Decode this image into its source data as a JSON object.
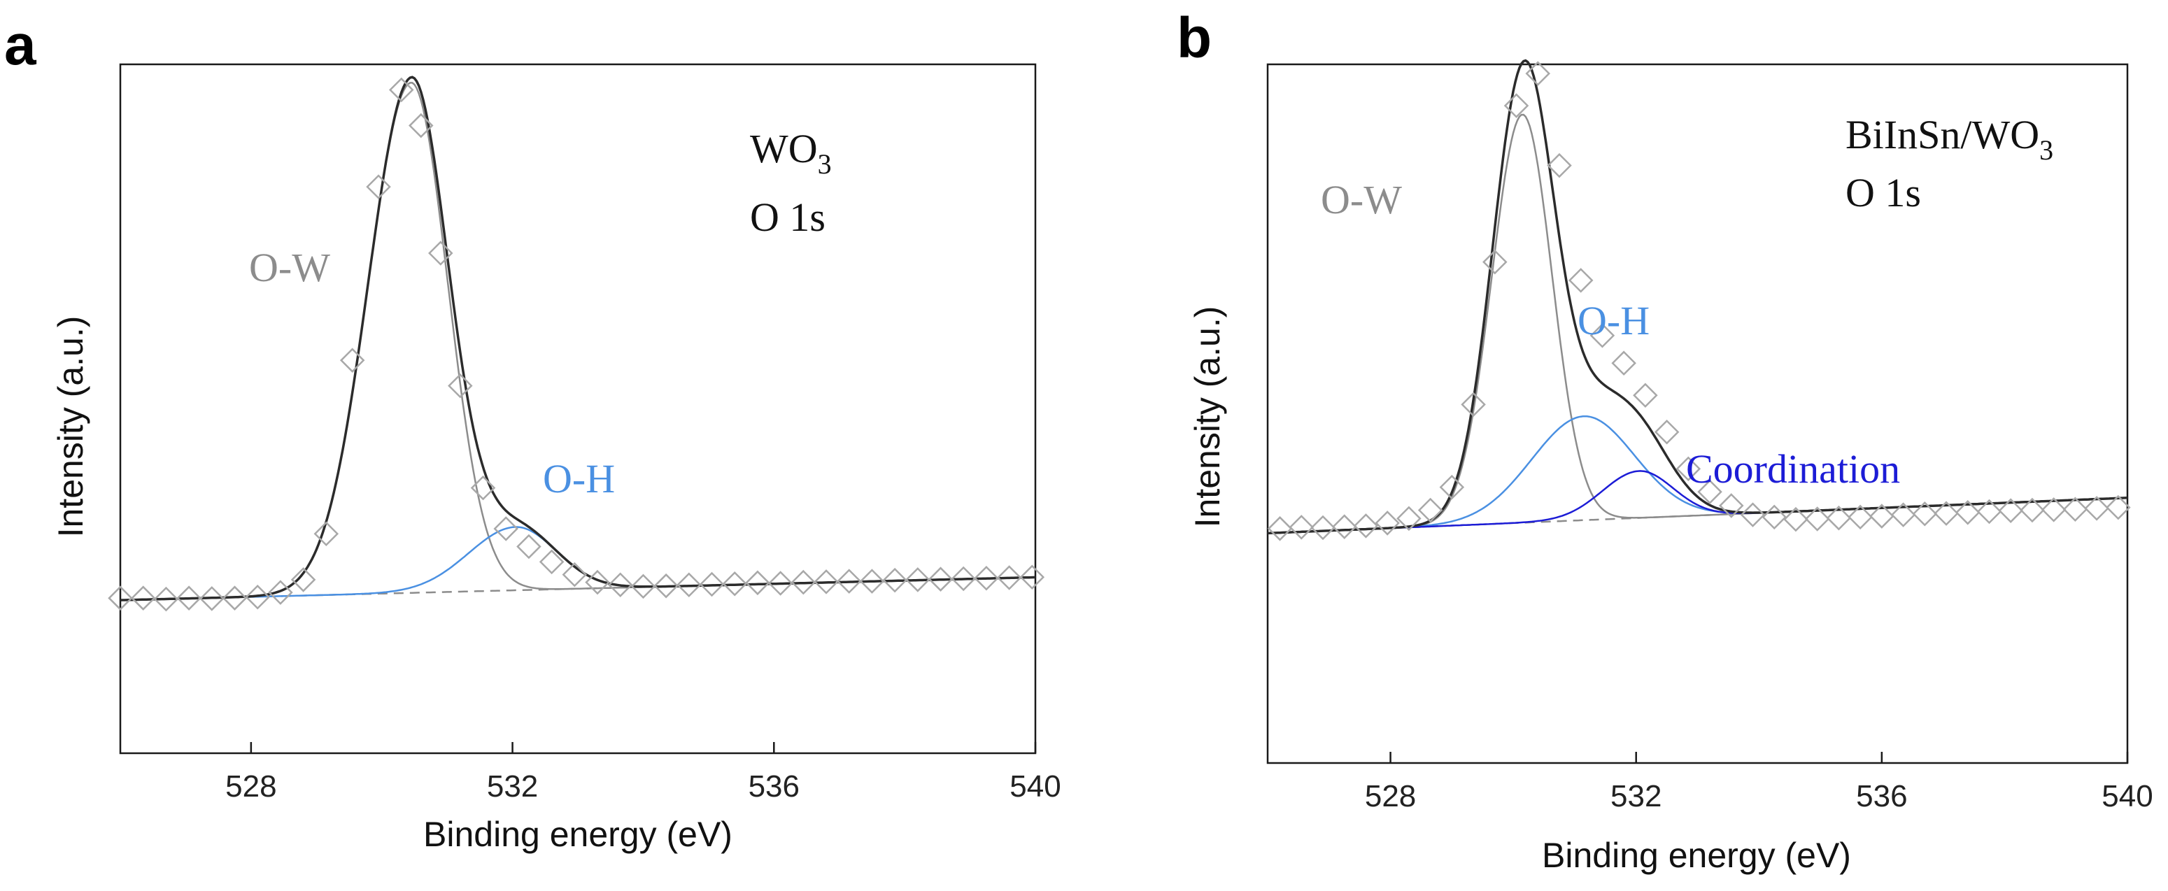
{
  "chart_data": [
    {
      "type": "line",
      "panel_label": "a",
      "title": "",
      "xlabel": "Binding energy (eV)",
      "ylabel": "Intensity (a.u.)",
      "xlim": [
        526,
        540
      ],
      "ylim": [
        -0.3,
        1.05
      ],
      "x_ticks": [
        528,
        532,
        536,
        540
      ],
      "x_tick_labels": [
        "528",
        "532",
        "536",
        "540"
      ],
      "grid": false,
      "legend": "none",
      "background": {
        "y0": 0.0,
        "slope": 0.0032
      },
      "components": [
        {
          "name": "O-W",
          "center": 530.45,
          "height": 1.0,
          "sigma_left": 0.66,
          "sigma_right": 0.56,
          "color": "#8c8c8c"
        },
        {
          "name": "O-H",
          "center": 532.05,
          "height": 0.124,
          "sigma_left": 0.72,
          "sigma_right": 0.62,
          "color": "#4a90e2"
        }
      ],
      "series": [
        {
          "name": "Raw data",
          "marker": "diamond",
          "color": "#a8a8a8",
          "x": [
            526.0,
            526.35,
            526.7,
            527.05,
            527.4,
            527.75,
            528.1,
            528.45,
            528.8,
            529.15,
            529.55,
            529.95,
            530.3,
            530.6,
            530.9,
            531.2,
            531.55,
            531.9,
            532.25,
            532.6,
            532.95,
            533.3,
            533.65,
            534.0,
            534.35,
            534.7,
            535.05,
            535.4,
            535.75,
            536.1,
            536.45,
            536.8,
            537.15,
            537.5,
            537.85,
            538.2,
            538.55,
            538.9,
            539.25,
            539.6,
            539.95
          ],
          "y": [
            0.004,
            0.004,
            0.002,
            0.004,
            0.003,
            0.004,
            0.006,
            0.015,
            0.04,
            0.13,
            0.47,
            0.81,
            1.0,
            0.93,
            0.68,
            0.42,
            0.22,
            0.14,
            0.105,
            0.075,
            0.05,
            0.035,
            0.03,
            0.027,
            0.028,
            0.03,
            0.031,
            0.032,
            0.034,
            0.033,
            0.035,
            0.036,
            0.037,
            0.037,
            0.039,
            0.04,
            0.041,
            0.042,
            0.043,
            0.044,
            0.045
          ]
        },
        {
          "name": "Envelope",
          "color": "#2b2b2b",
          "derived": "O-W + O-H + background"
        },
        {
          "name": "Background",
          "color": "#8c8c8c",
          "dash": true
        }
      ],
      "annotations": {
        "sample": "WO",
        "sample_sub": "3",
        "orbital": "O 1s",
        "peak1": "O-W",
        "peak2": "O-H"
      }
    },
    {
      "type": "line",
      "panel_label": "b",
      "title": "",
      "xlabel": "Binding energy (eV)",
      "ylabel": "Intensity (a.u.)",
      "xlim": [
        526,
        540
      ],
      "ylim": [
        -0.5,
        1.02
      ],
      "x_ticks": [
        528,
        532,
        536,
        540
      ],
      "x_tick_labels": [
        "528",
        "532",
        "536",
        "540"
      ],
      "grid": false,
      "legend": "none",
      "background": {
        "y0": 0.0,
        "slope": 0.0055
      },
      "components": [
        {
          "name": "O-W",
          "center": 530.15,
          "height": 0.888,
          "sigma_left": 0.5,
          "sigma_right": 0.48,
          "color": "#8c8c8c"
        },
        {
          "name": "O-H",
          "center": 531.15,
          "height": 0.226,
          "sigma_left": 0.85,
          "sigma_right": 0.82,
          "color": "#4a90e2"
        },
        {
          "name": "Coordination",
          "center": 532.05,
          "height": 0.102,
          "sigma_left": 0.6,
          "sigma_right": 0.55,
          "color": "#1c1cd6"
        }
      ],
      "series": [
        {
          "name": "Raw data",
          "marker": "diamond",
          "color": "#a8a8a8",
          "x": [
            526.2,
            526.55,
            526.9,
            527.25,
            527.6,
            527.95,
            528.3,
            528.65,
            529.0,
            529.35,
            529.7,
            530.05,
            530.4,
            530.75,
            531.1,
            531.45,
            531.8,
            532.15,
            532.5,
            532.85,
            533.2,
            533.55,
            533.9,
            534.25,
            534.6,
            534.95,
            535.3,
            535.65,
            536.0,
            536.35,
            536.7,
            537.05,
            537.4,
            537.75,
            538.1,
            538.45,
            538.8,
            539.15,
            539.5,
            539.85
          ],
          "y": [
            0.01,
            0.013,
            0.012,
            0.014,
            0.016,
            0.022,
            0.032,
            0.05,
            0.1,
            0.28,
            0.59,
            0.93,
            1.0,
            0.8,
            0.55,
            0.43,
            0.37,
            0.3,
            0.22,
            0.14,
            0.09,
            0.06,
            0.04,
            0.035,
            0.03,
            0.031,
            0.033,
            0.035,
            0.037,
            0.04,
            0.042,
            0.043,
            0.045,
            0.047,
            0.049,
            0.05,
            0.051,
            0.052,
            0.054,
            0.056
          ]
        },
        {
          "name": "Envelope",
          "color": "#2b2b2b",
          "derived": "O-W + O-H + Coordination + background"
        },
        {
          "name": "Background",
          "color": "#8c8c8c",
          "dash": true
        }
      ],
      "annotations": {
        "sample": "BiInSn/WO",
        "sample_sub": "3",
        "orbital": "O 1s",
        "peak1": "O-W",
        "peak2": "O-H",
        "peak3": "Coordination"
      }
    }
  ]
}
